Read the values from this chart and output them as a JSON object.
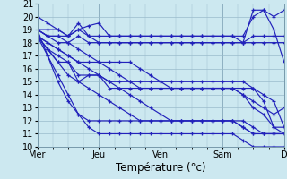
{
  "background_color": "#cce8f0",
  "plot_bg_color": "#cce8f0",
  "line_color": "#2222bb",
  "grid_color": "#99bbcc",
  "ylim": [
    10,
    21
  ],
  "yticks": [
    10,
    11,
    12,
    13,
    14,
    15,
    16,
    17,
    18,
    19,
    20,
    21
  ],
  "xlabel": "Température (°c)",
  "xlabel_fontsize": 8.5,
  "tick_fontsize": 7,
  "day_labels": [
    "Mer",
    "Jeu",
    "Ven",
    "Sam",
    "D"
  ],
  "day_positions": [
    0,
    24,
    48,
    72,
    96
  ],
  "total_hours": 96,
  "n_points": 25,
  "series": [
    [
      20.0,
      19.5,
      19.0,
      18.5,
      19.0,
      19.3,
      19.5,
      18.5,
      18.5,
      18.5,
      18.5,
      18.5,
      18.5,
      18.5,
      18.5,
      18.5,
      18.5,
      18.5,
      18.5,
      18.5,
      18.0,
      20.5,
      20.5,
      20.0,
      20.5
    ],
    [
      19.0,
      18.5,
      18.5,
      18.5,
      19.0,
      18.5,
      18.5,
      18.5,
      18.5,
      18.5,
      18.5,
      18.5,
      18.5,
      18.5,
      18.5,
      18.5,
      18.5,
      18.5,
      18.5,
      18.5,
      18.5,
      20.0,
      20.5,
      19.0,
      16.5
    ],
    [
      19.0,
      18.5,
      18.0,
      18.0,
      18.5,
      18.0,
      18.0,
      18.0,
      18.0,
      18.0,
      18.0,
      18.0,
      18.0,
      18.0,
      18.0,
      18.0,
      18.0,
      18.0,
      18.0,
      18.0,
      18.0,
      18.5,
      18.5,
      18.5,
      18.5
    ],
    [
      19.0,
      19.0,
      19.0,
      18.5,
      19.5,
      18.5,
      18.0,
      18.0,
      18.0,
      18.0,
      18.0,
      18.0,
      18.0,
      18.0,
      18.0,
      18.0,
      18.0,
      18.0,
      18.0,
      18.0,
      18.0,
      18.0,
      18.0,
      18.0,
      18.0
    ],
    [
      18.5,
      17.5,
      16.5,
      16.5,
      15.0,
      15.5,
      15.5,
      15.0,
      15.0,
      15.0,
      15.0,
      15.0,
      15.0,
      15.0,
      15.0,
      15.0,
      15.0,
      15.0,
      15.0,
      15.0,
      15.0,
      14.5,
      13.5,
      11.5,
      11.0
    ],
    [
      18.5,
      17.5,
      17.0,
      16.5,
      15.5,
      15.5,
      15.5,
      14.5,
      14.5,
      14.5,
      14.5,
      14.5,
      14.5,
      14.5,
      14.5,
      14.5,
      14.5,
      14.5,
      14.5,
      14.5,
      14.5,
      14.5,
      14.0,
      13.5,
      11.5
    ],
    [
      18.5,
      18.0,
      17.5,
      17.0,
      16.5,
      16.5,
      16.5,
      16.5,
      16.5,
      16.5,
      16.0,
      15.5,
      15.0,
      14.5,
      14.5,
      14.5,
      14.5,
      14.5,
      14.5,
      14.5,
      14.0,
      13.0,
      12.5,
      11.5,
      11.5
    ],
    [
      19.0,
      18.5,
      18.5,
      18.0,
      17.5,
      17.0,
      16.5,
      16.0,
      15.5,
      15.0,
      14.5,
      14.5,
      14.5,
      14.5,
      14.5,
      14.5,
      14.5,
      14.5,
      14.5,
      14.5,
      14.0,
      13.5,
      13.0,
      12.5,
      13.0
    ],
    [
      18.5,
      18.0,
      17.5,
      17.0,
      16.5,
      16.0,
      15.5,
      15.0,
      14.5,
      14.0,
      13.5,
      13.0,
      12.5,
      12.0,
      12.0,
      12.0,
      12.0,
      12.0,
      12.0,
      12.0,
      11.5,
      11.0,
      11.0,
      11.0,
      11.0
    ],
    [
      18.5,
      17.5,
      16.5,
      15.5,
      15.0,
      14.5,
      14.0,
      13.5,
      13.0,
      12.5,
      12.0,
      12.0,
      12.0,
      12.0,
      12.0,
      12.0,
      12.0,
      12.0,
      12.0,
      12.0,
      11.5,
      11.0,
      11.0,
      11.0,
      11.0
    ],
    [
      18.5,
      17.0,
      15.5,
      14.0,
      12.5,
      12.0,
      12.0,
      12.0,
      12.0,
      12.0,
      12.0,
      12.0,
      12.0,
      12.0,
      12.0,
      12.0,
      12.0,
      12.0,
      12.0,
      12.0,
      12.0,
      11.5,
      11.0,
      11.0,
      11.0
    ],
    [
      19.0,
      17.0,
      15.0,
      13.5,
      12.5,
      11.5,
      11.0,
      11.0,
      11.0,
      11.0,
      11.0,
      11.0,
      11.0,
      11.0,
      11.0,
      11.0,
      11.0,
      11.0,
      11.0,
      11.0,
      10.5,
      10.0,
      10.0,
      10.0,
      10.0
    ]
  ]
}
